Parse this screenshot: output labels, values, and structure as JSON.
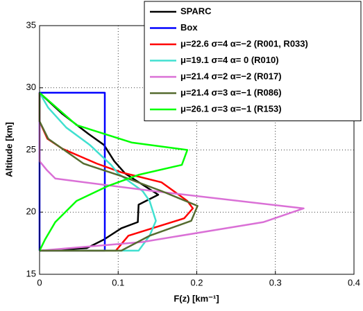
{
  "chart_data": {
    "type": "line",
    "xlabel": "F(z) [km⁻¹]",
    "ylabel": "Altitude [km]",
    "xlim": [
      0,
      0.4
    ],
    "ylim": [
      15,
      35
    ],
    "xticks": [
      0,
      0.1,
      0.2,
      0.3,
      0.4
    ],
    "yticks": [
      15,
      20,
      25,
      30,
      35
    ],
    "grid": true,
    "legend": "upper right",
    "series": [
      {
        "name": "SPARC",
        "color": "#000000",
        "x": [
          0,
          0.029,
          0.062,
          0.082,
          0.095,
          0.109,
          0.151,
          0.126,
          0.125,
          0.104,
          0.082,
          0.06,
          0
        ],
        "y": [
          29.6,
          27.9,
          26.3,
          25.4,
          24.1,
          23.1,
          21.4,
          20.6,
          19.2,
          18.7,
          17.8,
          17.1,
          16.9
        ]
      },
      {
        "name": "Box",
        "color": "#0000ff",
        "x": [
          0,
          0,
          0.083,
          0.083,
          0
        ],
        "y": [
          16.9,
          29.6,
          29.6,
          16.9,
          16.9
        ]
      },
      {
        "name": "μ=22.6 σ=4 α=−2 (R001, R033)",
        "color": "#ff0000",
        "x": [
          0,
          0,
          0.01,
          0.029,
          0.073,
          0.104,
          0.155,
          0.188,
          0.195,
          0.184,
          0.113,
          0.097,
          0
        ],
        "y": [
          29.6,
          27.3,
          25.9,
          25.1,
          23.9,
          23.2,
          22.4,
          20.9,
          20.3,
          19.5,
          18.1,
          16.9,
          16.9
        ]
      },
      {
        "name": "μ=19.1 σ=4 α= 0 (R010)",
        "color": "#40e0d0",
        "x": [
          0,
          0.011,
          0.034,
          0.064,
          0.091,
          0.1,
          0.131,
          0.14,
          0.148,
          0.14,
          0.126,
          0
        ],
        "y": [
          29.6,
          28.4,
          26.8,
          25.4,
          23.8,
          23.1,
          21.7,
          20.9,
          19.3,
          18.1,
          16.9,
          16.9
        ]
      },
      {
        "name": "μ=21.4 σ=2 α=−2 (R017)",
        "color": "#da70d6",
        "x": [
          0,
          0,
          0.009,
          0.02,
          0.144,
          0.336,
          0.285,
          0.131,
          0
        ],
        "y": [
          29.6,
          24.1,
          23.4,
          22.7,
          21.7,
          20.3,
          19.2,
          17.6,
          16.9
        ]
      },
      {
        "name": "μ=21.4 σ=3 α=−1 (R086)",
        "color": "#556b2f",
        "x": [
          0,
          0,
          0.011,
          0.056,
          0.104,
          0.155,
          0.201,
          0.193,
          0.14,
          0.104,
          0
        ],
        "y": [
          29.6,
          27.3,
          25.9,
          23.9,
          22.9,
          21.7,
          20.5,
          19.3,
          18.1,
          16.9,
          16.9
        ]
      },
      {
        "name": "μ=26.1 σ=3 α=−1 (R153)",
        "color": "#00ff00",
        "x": [
          0,
          0.047,
          0.117,
          0.188,
          0.181,
          0.126,
          0.087,
          0.047,
          0.02,
          0.007,
          0
        ],
        "y": [
          29.6,
          27.0,
          25.6,
          25.0,
          23.8,
          23.0,
          22.1,
          20.9,
          19.2,
          17.8,
          16.9
        ]
      }
    ]
  }
}
